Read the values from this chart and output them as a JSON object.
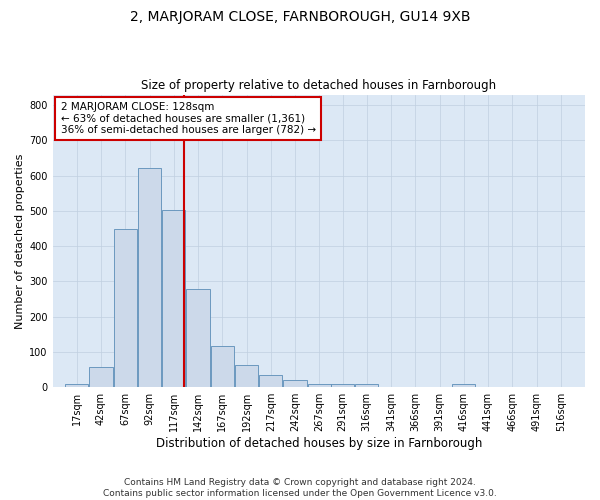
{
  "title": "2, MARJORAM CLOSE, FARNBOROUGH, GU14 9XB",
  "subtitle": "Size of property relative to detached houses in Farnborough",
  "xlabel": "Distribution of detached houses by size in Farnborough",
  "ylabel": "Number of detached properties",
  "bin_labels": [
    "17sqm",
    "42sqm",
    "67sqm",
    "92sqm",
    "117sqm",
    "142sqm",
    "167sqm",
    "192sqm",
    "217sqm",
    "242sqm",
    "267sqm",
    "291sqm",
    "316sqm",
    "341sqm",
    "366sqm",
    "391sqm",
    "416sqm",
    "441sqm",
    "466sqm",
    "491sqm",
    "516sqm"
  ],
  "bar_heights": [
    10,
    58,
    448,
    622,
    504,
    278,
    116,
    64,
    36,
    20,
    10,
    8,
    8,
    0,
    0,
    0,
    8,
    0,
    0,
    0,
    0
  ],
  "bar_color": "#ccd9ea",
  "bar_edge_color": "#5b8db8",
  "vline_x_index": 4,
  "vline_color": "#cc0000",
  "annotation_line1": "2 MARJORAM CLOSE: 128sqm",
  "annotation_line2": "← 63% of detached houses are smaller (1,361)",
  "annotation_line3": "36% of semi-detached houses are larger (782) →",
  "annotation_box_color": "#ffffff",
  "annotation_box_edge": "#cc0000",
  "ylim": [
    0,
    830
  ],
  "yticks": [
    0,
    100,
    200,
    300,
    400,
    500,
    600,
    700,
    800
  ],
  "grid_color": "#c0cfe0",
  "background_color": "#dce8f5",
  "footer_line1": "Contains HM Land Registry data © Crown copyright and database right 2024.",
  "footer_line2": "Contains public sector information licensed under the Open Government Licence v3.0.",
  "bin_width": 25,
  "bin_starts": [
    17,
    42,
    67,
    92,
    117,
    142,
    167,
    192,
    217,
    242,
    267,
    291,
    316,
    341,
    366,
    391,
    416,
    441,
    466,
    491,
    516
  ],
  "title_fontsize": 10,
  "subtitle_fontsize": 8.5,
  "ylabel_fontsize": 8,
  "xlabel_fontsize": 8.5,
  "tick_fontsize": 7,
  "annotation_fontsize": 7.5,
  "footer_fontsize": 6.5
}
